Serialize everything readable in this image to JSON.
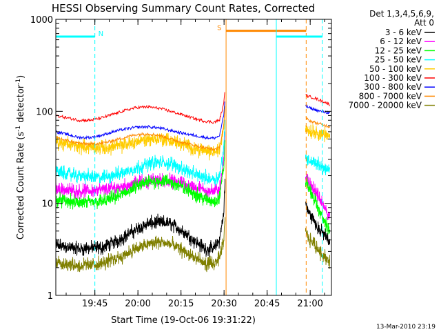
{
  "chart_data": {
    "type": "line",
    "title": "HESSI Observing Summary Count Rates, Corrected",
    "xlabel": "Start Time (19-Oct-06 19:31:22)",
    "ylabel_prefix": "Corrected Count Rate (s",
    "ylabel_sup": "-1",
    "ylabel_mid": " detector",
    "ylabel_suffix": ")",
    "xscale": "time (minutes after 19:31:22)",
    "yscale": "log",
    "xlim": [
      0,
      96
    ],
    "ylim": [
      1,
      1000
    ],
    "x_ticks": [
      {
        "label": "19:45",
        "value": 13.6
      },
      {
        "label": "20:00",
        "value": 28.6
      },
      {
        "label": "20:15",
        "value": 43.6
      },
      {
        "label": "20:30",
        "value": 58.6
      },
      {
        "label": "20:45",
        "value": 73.6
      },
      {
        "label": "21:00",
        "value": 88.6
      }
    ],
    "y_ticks": [
      {
        "label": "1",
        "value": 1
      },
      {
        "label": "10",
        "value": 10
      },
      {
        "label": "100",
        "value": 100
      },
      {
        "label": "1000",
        "value": 1000
      }
    ],
    "legend": {
      "placement": "right",
      "header": [
        "Det 1,3,4,5,6,9,",
        "Att 0"
      ]
    },
    "timestamp": "13-Mar-2010 23:19",
    "series": [
      {
        "name": "3 - 6 keV",
        "color": "#000000",
        "style": "noisy",
        "x": [
          0,
          8,
          16,
          22,
          28,
          32,
          36,
          40,
          44,
          48,
          52,
          55,
          57,
          58.5,
          59
        ],
        "y": [
          3.5,
          3.2,
          3.3,
          4.0,
          5.2,
          6.0,
          6.2,
          6.0,
          5.0,
          4.0,
          3.2,
          3.2,
          4.0,
          8.0,
          20.0
        ],
        "x2": [
          87,
          88,
          90,
          92,
          94,
          95.5
        ],
        "y2": [
          10,
          8,
          6.5,
          5,
          4.5,
          3.5
        ]
      },
      {
        "name": "6 - 12 keV",
        "color": "#ff00ff",
        "style": "noisy",
        "x": [
          0,
          8,
          16,
          22,
          28,
          32,
          36,
          40,
          44,
          48,
          52,
          55,
          57,
          58.5,
          59
        ],
        "y": [
          14.5,
          13.5,
          14.0,
          15.0,
          16.5,
          17.5,
          18.0,
          17.5,
          16.5,
          15.0,
          14.0,
          13.5,
          14.5,
          30.0,
          60.0
        ],
        "x2": [
          87,
          88,
          90,
          92,
          94,
          95.5
        ],
        "y2": [
          19,
          17,
          14,
          11,
          8.5,
          7
        ]
      },
      {
        "name": "12 - 25 keV",
        "color": "#00ff00",
        "style": "noisy",
        "x": [
          0,
          8,
          16,
          22,
          28,
          32,
          36,
          40,
          44,
          48,
          52,
          55,
          57,
          58.5,
          59
        ],
        "y": [
          11.0,
          10.0,
          10.5,
          12.0,
          15.0,
          17.0,
          17.5,
          17.0,
          15.0,
          13.0,
          11.0,
          10.5,
          11.5,
          25.0,
          50.0
        ],
        "x2": [
          87,
          88,
          90,
          92,
          94,
          95.5
        ],
        "y2": [
          18,
          15,
          11,
          8,
          6,
          5
        ]
      },
      {
        "name": "25 - 50 keV",
        "color": "#00ffff",
        "style": "noisy",
        "x": [
          0,
          8,
          16,
          22,
          28,
          32,
          36,
          40,
          44,
          48,
          52,
          55,
          57,
          58.5,
          59
        ],
        "y": [
          22,
          20,
          19,
          21,
          24,
          27,
          28,
          27,
          24,
          21,
          19,
          18.5,
          19.5,
          40,
          80
        ],
        "x2": [
          87,
          88,
          90,
          92,
          94,
          95.5
        ],
        "y2": [
          32,
          30,
          28,
          26,
          24,
          22
        ]
      },
      {
        "name": "50 - 100 keV",
        "color": "#ffcc00",
        "style": "noisy",
        "x": [
          0,
          8,
          16,
          22,
          28,
          32,
          36,
          40,
          44,
          48,
          52,
          55,
          57,
          58.5,
          59
        ],
        "y": [
          46,
          42,
          40,
          42,
          47,
          50,
          50,
          48,
          44,
          40,
          37,
          36,
          38,
          70,
          120
        ],
        "x2": [
          87,
          88,
          90,
          92,
          94,
          95.5
        ],
        "y2": [
          65,
          62,
          60,
          58,
          55,
          52
        ]
      },
      {
        "name": "100 - 300 keV",
        "color": "#ff0000",
        "style": "smooth",
        "x": [
          0,
          4,
          8,
          12,
          16,
          20,
          24,
          28,
          32,
          36,
          40,
          44,
          48,
          52,
          55,
          57,
          58.5,
          59
        ],
        "y": [
          90,
          85,
          80,
          80,
          85,
          93,
          102,
          110,
          112,
          108,
          100,
          92,
          84,
          78,
          76,
          80,
          120,
          190
        ],
        "x2": [
          87,
          88,
          90,
          92,
          94,
          95.5
        ],
        "y2": [
          150,
          145,
          140,
          132,
          125,
          118
        ]
      },
      {
        "name": "300 - 800 keV",
        "color": "#0000ff",
        "style": "smooth",
        "x": [
          0,
          4,
          8,
          12,
          16,
          20,
          24,
          28,
          32,
          36,
          40,
          44,
          48,
          52,
          55,
          57,
          58.5,
          59
        ],
        "y": [
          60,
          56,
          52,
          52,
          55,
          60,
          64,
          67,
          68,
          66,
          62,
          58,
          55,
          52,
          51,
          54,
          90,
          150
        ],
        "x2": [
          87,
          88,
          90,
          92,
          94,
          95.5
        ],
        "y2": [
          115,
          110,
          105,
          100,
          98,
          95
        ]
      },
      {
        "name": "800 - 7000 keV",
        "color": "#ff8800",
        "style": "smooth",
        "x": [
          0,
          4,
          8,
          12,
          16,
          20,
          24,
          28,
          32,
          36,
          40,
          44,
          48,
          52,
          55,
          57,
          58.5,
          59
        ],
        "y": [
          52,
          48,
          45,
          44,
          45,
          48,
          52,
          56,
          57,
          55,
          50,
          46,
          43,
          40,
          38.5,
          40,
          70,
          120
        ],
        "x2": [
          87,
          88,
          90,
          92,
          94,
          95.5
        ],
        "y2": [
          85,
          80,
          76,
          73,
          70,
          68
        ]
      },
      {
        "name": "7000 - 20000 keV",
        "color": "#808000",
        "style": "noisy",
        "x": [
          0,
          8,
          16,
          22,
          28,
          32,
          36,
          40,
          44,
          48,
          52,
          55,
          57,
          58.5,
          59
        ],
        "y": [
          2.3,
          2.1,
          2.2,
          2.6,
          3.2,
          3.6,
          3.8,
          3.6,
          3.1,
          2.6,
          2.2,
          2.2,
          2.5,
          4.0,
          7.0
        ],
        "x2": [
          87,
          88,
          90,
          92,
          94,
          95.5
        ],
        "y2": [
          5,
          4.2,
          3.6,
          3.0,
          2.6,
          2.2
        ]
      }
    ],
    "annotations": {
      "events": [
        {
          "label": "N",
          "color": "#00ffff",
          "bar_start": 0,
          "bar_end": 13.6,
          "bar_value": 650,
          "solid_x": 0,
          "dashed_x": 13.6
        },
        {
          "label": "S",
          "color": "#ff8800",
          "bar_start": 59.3,
          "bar_end": 87.2,
          "bar_value": 750,
          "solid_x": 59.3,
          "dashed_x": 87.2
        },
        {
          "label": "",
          "color": "#00ffff",
          "bar_start": 76.8,
          "bar_end": 92.8,
          "bar_value": 650,
          "solid_x": 76.8,
          "dashed_x": 92.8
        }
      ]
    }
  }
}
